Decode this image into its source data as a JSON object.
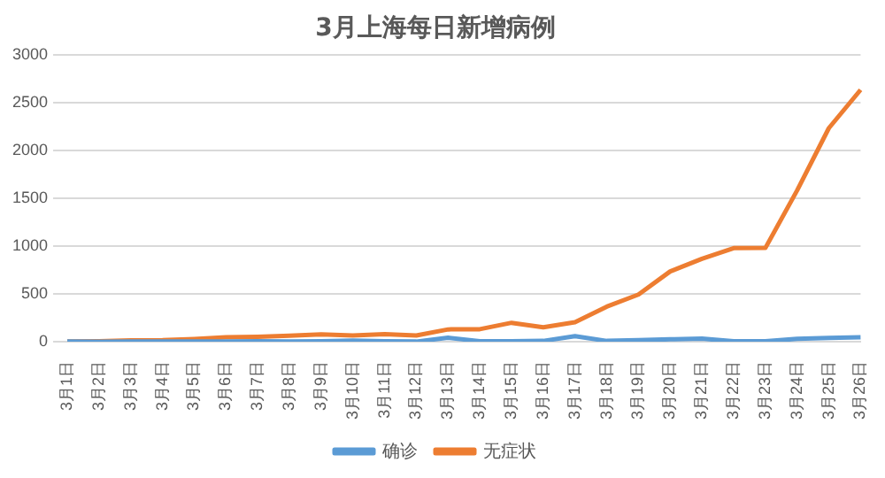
{
  "chart_data": {
    "type": "line",
    "title": "3月上海每日新增病例",
    "categories": [
      "3月1日",
      "3月2日",
      "3月3日",
      "3月4日",
      "3月5日",
      "3月6日",
      "3月7日",
      "3月8日",
      "3月9日",
      "3月10日",
      "3月11日",
      "3月12日",
      "3月13日",
      "3月14日",
      "3月15日",
      "3月16日",
      "3月17日",
      "3月18日",
      "3月19日",
      "3月20日",
      "3月21日",
      "3月22日",
      "3月23日",
      "3月24日",
      "3月25日",
      "3月26日"
    ],
    "series": [
      {
        "name": "确诊",
        "color": "#5b9bd5",
        "values": [
          2,
          0,
          3,
          2,
          3,
          3,
          4,
          3,
          4,
          11,
          5,
          1,
          41,
          5,
          5,
          8,
          57,
          8,
          17,
          24,
          31,
          4,
          4,
          29,
          38,
          45
        ]
      },
      {
        "name": "无症状",
        "color": "#ed7d31",
        "values": [
          1,
          5,
          14,
          16,
          28,
          45,
          51,
          62,
          76,
          64,
          78,
          64,
          128,
          130,
          197,
          150,
          203,
          366,
          492,
          734,
          865,
          977,
          979,
          1580,
          2231,
          2631
        ]
      }
    ],
    "ylim": [
      0,
      3000
    ],
    "yticks": [
      0,
      500,
      1000,
      1500,
      2000,
      2500,
      3000
    ],
    "grid": "y",
    "legend": "bottom",
    "marker": "none",
    "line_style": "solid"
  }
}
